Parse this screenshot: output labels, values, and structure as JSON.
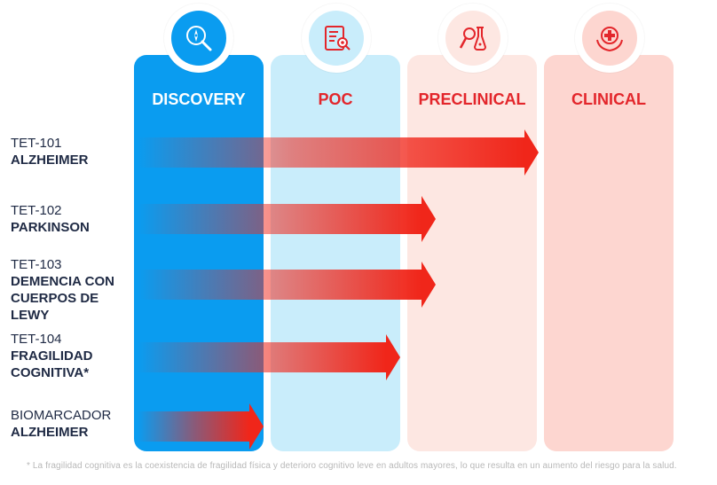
{
  "phases": [
    {
      "label": "DISCOVERY",
      "icon": "compass-search-icon",
      "color": "#0a9cf0",
      "text_color": "#ffffff"
    },
    {
      "label": "POC",
      "icon": "document-eye-icon",
      "color": "#c6ecfb",
      "text_color": "#e3262b"
    },
    {
      "label": "PRECLINICAL",
      "icon": "flask-microscope-icon",
      "color": "#fde6e1",
      "text_color": "#e3262b"
    },
    {
      "label": "CLINICAL",
      "icon": "hands-medical-cross-icon",
      "color": "#fdd5cf",
      "text_color": "#e3262b"
    }
  ],
  "programs": [
    {
      "code": "TET-101",
      "name_lines": [
        "ALZHEIMER"
      ],
      "stage": "PRECLINICAL"
    },
    {
      "code": "TET-102",
      "name_lines": [
        "PARKINSON"
      ],
      "stage": "POC"
    },
    {
      "code": "TET-103",
      "name_lines": [
        "DEMENCIA CON",
        "CUERPOS DE",
        "LEWY"
      ],
      "stage": "POC"
    },
    {
      "code": "TET-104",
      "name_lines": [
        "FRAGILIDAD",
        "COGNITIVA*"
      ],
      "stage": "POC"
    },
    {
      "code": "BIOMARCADOR",
      "name_lines": [
        "ALZHEIMER"
      ],
      "stage": "DISCOVERY"
    }
  ],
  "footnote": "* La fragilidad cognitiva es la coexistencia de fragilidad física y deterioro cognitivo leve en adultos mayores, lo que resulta en un aumento del riesgo para la salud."
}
